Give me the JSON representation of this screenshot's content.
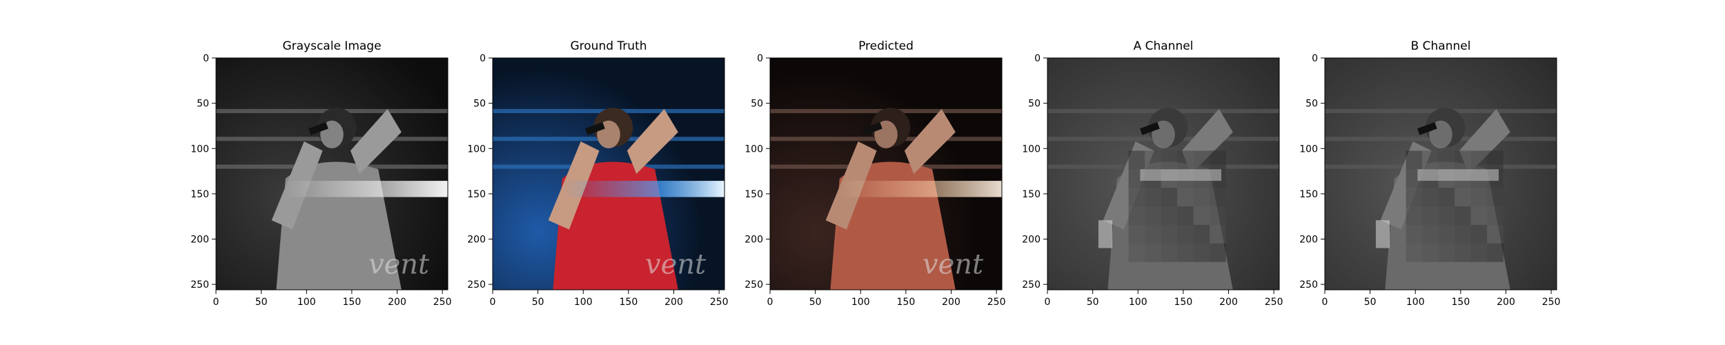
{
  "figure": {
    "panels": [
      {
        "title": "Grayscale Image",
        "kind": "grayscale",
        "watermark": "vent"
      },
      {
        "title": "Ground Truth",
        "kind": "color",
        "watermark": "vent"
      },
      {
        "title": "Predicted",
        "kind": "predicted",
        "watermark": "vent"
      },
      {
        "title": "A Channel",
        "kind": "channel",
        "watermark": ""
      },
      {
        "title": "B Channel",
        "kind": "channel",
        "watermark": ""
      }
    ],
    "x_ticks": [
      "0",
      "50",
      "100",
      "150",
      "200",
      "250"
    ],
    "y_ticks": [
      "0",
      "50",
      "100",
      "150",
      "200",
      "250"
    ]
  },
  "colors": {
    "frame": "#000000",
    "gray_bg": "#1a1a1a",
    "truth_shirt": "#c8232e",
    "truth_light": "#2f8cff",
    "predicted_shirt": "#b05a46"
  }
}
